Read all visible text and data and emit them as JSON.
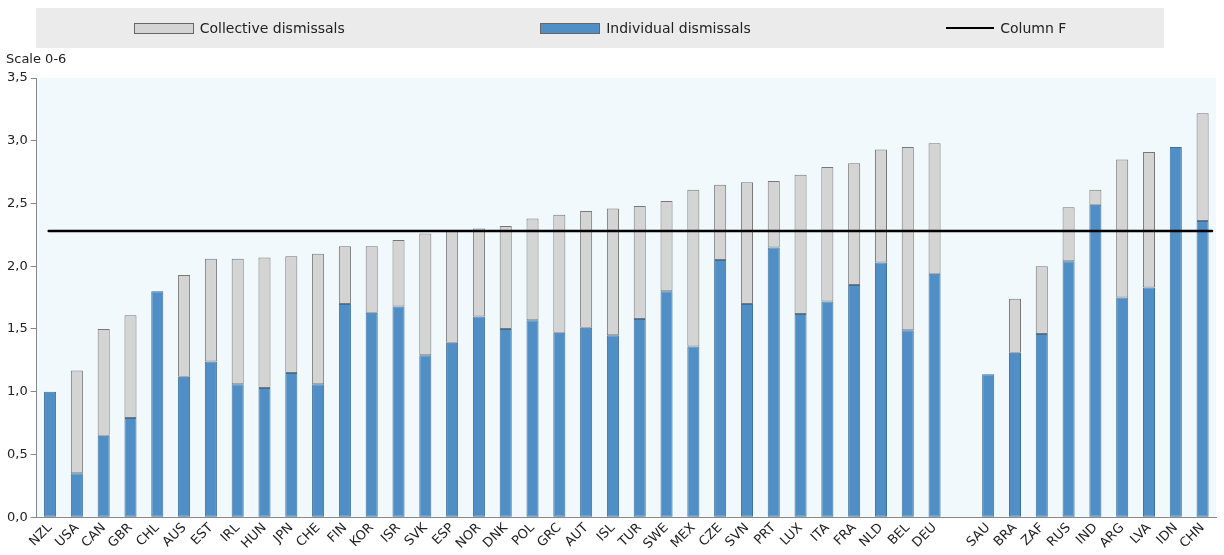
{
  "chart_data": {
    "type": "bar",
    "stacked": true,
    "ylabel": "Scale 0-6",
    "legend": "top",
    "grid": false,
    "categories": [
      "NZL",
      "USA",
      "CAN",
      "GBR",
      "CHL",
      "AUS",
      "EST",
      "IRL",
      "HUN",
      "JPN",
      "CHE",
      "FIN",
      "KOR",
      "ISR",
      "SVK",
      "ESP",
      "NOR",
      "DNK",
      "POL",
      "GRC",
      "AUT",
      "ISL",
      "TUR",
      "SWE",
      "MEX",
      "CZE",
      "SVN",
      "PRT",
      "LUX",
      "ITA",
      "FRA",
      "NLD",
      "BEL",
      "DEU",
      null,
      "SAU",
      "BRA",
      "ZAF",
      "RUS",
      "IND",
      "ARG",
      "LVA",
      "IDN",
      "CHN"
    ],
    "ylim": [
      0,
      3.5
    ],
    "yticks": [
      {
        "value": 0,
        "label": "0,0"
      },
      {
        "value": 0.5,
        "label": "0,5"
      },
      {
        "value": 1,
        "label": "1,0"
      },
      {
        "value": 1.5,
        "label": "1,5"
      },
      {
        "value": 2,
        "label": "2,0"
      },
      {
        "value": 2.5,
        "label": "2,5"
      },
      {
        "value": 3,
        "label": "3,0"
      },
      {
        "value": 3.5,
        "label": "3,5"
      }
    ],
    "series": [
      {
        "name": "Individual dismissals",
        "color": "#4f8fc6",
        "values": [
          1.0,
          0.35,
          0.65,
          0.79,
          1.8,
          1.12,
          1.24,
          1.06,
          1.03,
          1.15,
          1.06,
          1.7,
          1.63,
          1.68,
          1.29,
          1.39,
          1.6,
          1.5,
          1.57,
          1.47,
          1.51,
          1.45,
          1.58,
          1.8,
          1.36,
          2.05,
          1.7,
          2.15,
          1.62,
          1.72,
          1.85,
          2.03,
          1.49,
          1.94,
          null,
          1.14,
          1.31,
          1.46,
          2.04,
          2.49,
          1.75,
          1.83,
          2.95,
          2.36
        ]
      },
      {
        "name": "Collective dismissals",
        "color": "#d4d4d4",
        "values": [
          null,
          0.82,
          0.85,
          0.82,
          null,
          0.81,
          0.82,
          1.0,
          1.04,
          0.93,
          1.04,
          0.46,
          0.53,
          0.53,
          0.97,
          0.89,
          0.7,
          0.82,
          0.81,
          0.94,
          0.93,
          1.01,
          0.9,
          0.72,
          1.25,
          0.6,
          0.97,
          0.53,
          1.11,
          1.07,
          0.97,
          0.9,
          1.46,
          1.04,
          null,
          null,
          0.43,
          0.54,
          0.43,
          0.12,
          1.1,
          1.08,
          null,
          0.86
        ]
      }
    ],
    "ref_lines": [
      {
        "axis": "y",
        "value": 2.28,
        "label": "Column F",
        "color": "#000000",
        "line_style": "solid"
      }
    ]
  }
}
